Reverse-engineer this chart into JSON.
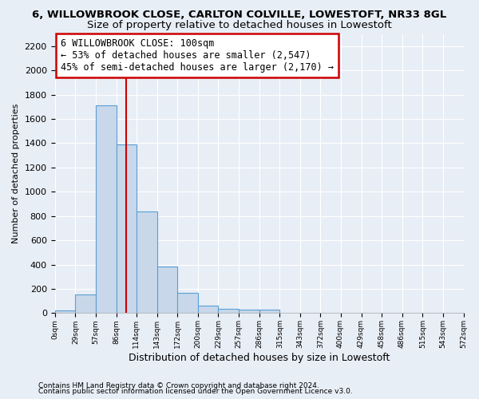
{
  "title1": "6, WILLOWBROOK CLOSE, CARLTON COLVILLE, LOWESTOFT, NR33 8GL",
  "title2": "Size of property relative to detached houses in Lowestoft",
  "xlabel": "Distribution of detached houses by size in Lowestoft",
  "ylabel": "Number of detached properties",
  "footer1": "Contains HM Land Registry data © Crown copyright and database right 2024.",
  "footer2": "Contains public sector information licensed under the Open Government Licence v3.0.",
  "bin_edges": [
    0,
    29,
    57,
    86,
    114,
    143,
    172,
    200,
    229,
    257,
    286,
    315,
    343,
    372,
    400,
    429,
    458,
    486,
    515,
    543,
    572
  ],
  "bar_heights": [
    20,
    155,
    1710,
    1390,
    835,
    385,
    165,
    65,
    35,
    30,
    30,
    0,
    0,
    0,
    0,
    0,
    0,
    0,
    0,
    0
  ],
  "bar_color": "#c8d8ea",
  "bar_edge_color": "#5a9fd4",
  "property_line_x": 100,
  "property_line_color": "#cc0000",
  "annotation_line1": "6 WILLOWBROOK CLOSE: 100sqm",
  "annotation_line2": "← 53% of detached houses are smaller (2,547)",
  "annotation_line3": "45% of semi-detached houses are larger (2,170) →",
  "ylim": [
    0,
    2300
  ],
  "yticks": [
    0,
    200,
    400,
    600,
    800,
    1000,
    1200,
    1400,
    1600,
    1800,
    2000,
    2200
  ],
  "bg_color": "#e8eef6",
  "grid_color": "#ffffff",
  "title1_fontsize": 9.5,
  "title2_fontsize": 9.5,
  "ylabel_fontsize": 8,
  "xlabel_fontsize": 9,
  "footer_fontsize": 6.5,
  "annotation_fontsize": 8.5,
  "annot_box_color": "#cc0000"
}
